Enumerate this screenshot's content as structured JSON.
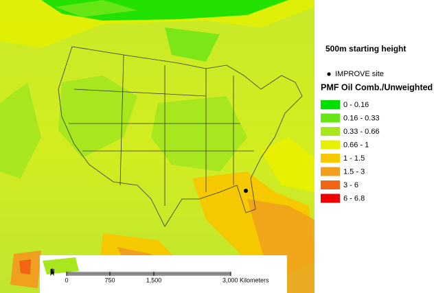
{
  "map": {
    "heading": "500m starting height",
    "site_marker": {
      "label": "IMPROVE site"
    },
    "legend": {
      "title": "PMF Oil Comb./Unweighted",
      "items": [
        {
          "label": "0 - 0.16",
          "color": "#00e000"
        },
        {
          "label": "0.16 - 0.33",
          "color": "#66e614"
        },
        {
          "label": "0.33 - 0.66",
          "color": "#a8e61e"
        },
        {
          "label": "0.66 - 1",
          "color": "#e6f000"
        },
        {
          "label": "1 - 1.5",
          "color": "#f5c800"
        },
        {
          "label": "1.5 - 3",
          "color": "#f0a01e"
        },
        {
          "label": "3 - 6",
          "color": "#f06414"
        },
        {
          "label": "6 - 6.8",
          "color": "#f00000"
        }
      ]
    },
    "scale_bar": {
      "labels": [
        "0",
        "750",
        "1,500",
        "3,000 Kilometers"
      ]
    },
    "north_arrow": {
      "label": "N"
    }
  }
}
